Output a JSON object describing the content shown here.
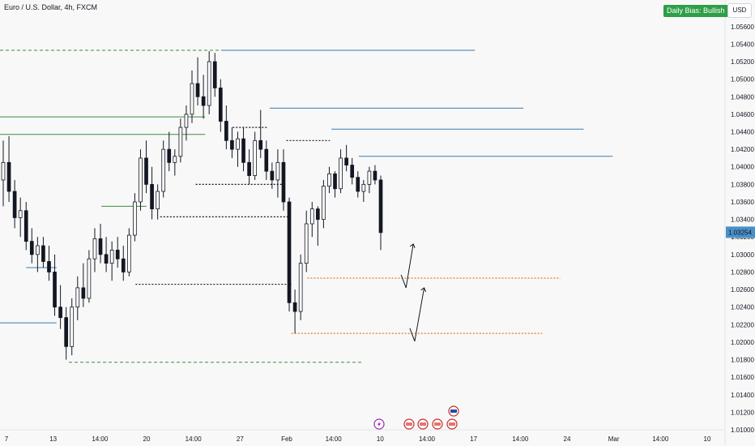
{
  "header": {
    "title": "Euro / U.S. Dollar, 4h, FXCM",
    "bias_badge": "Daily Bias: Bullish",
    "currency": "USD"
  },
  "colors": {
    "background": "#f8f8f8",
    "candle": "#131722",
    "resistance": "#3c78a8",
    "support": "#3a8c3a",
    "liquidity": "#e8782c",
    "structure": "#131722",
    "badge": "#2e9e47",
    "price_tag": "#4a90c8"
  },
  "chart_data": {
    "type": "candlestick",
    "title": "Euro / U.S. Dollar, 4h, FXCM",
    "y_axis": {
      "side": "right",
      "range": [
        1.01,
        1.057
      ],
      "ticks": [
        "1.05600",
        "1.05400",
        "1.05200",
        "1.05000",
        "1.04800",
        "1.04600",
        "1.04400",
        "1.04200",
        "1.04000",
        "1.03800",
        "1.03600",
        "1.03400",
        "1.03200",
        "1.03000",
        "1.02800",
        "1.02600",
        "1.02400",
        "1.02200",
        "1.02000",
        "1.01800",
        "1.01600",
        "1.01400",
        "1.01200",
        "1.01000"
      ]
    },
    "x_axis": {
      "ticks": [
        "7",
        "13",
        "14:00",
        "20",
        "14:00",
        "27",
        "Feb",
        "14:00",
        "10",
        "14:00",
        "17",
        "14:00",
        "24",
        "Mar",
        "14:00",
        "10"
      ]
    },
    "current_price": "1.03254",
    "grid": false,
    "candles": [
      {
        "o": 1.0385,
        "h": 1.043,
        "l": 1.0355,
        "c": 1.0405
      },
      {
        "o": 1.0405,
        "h": 1.0435,
        "l": 1.036,
        "c": 1.0372
      },
      {
        "o": 1.0372,
        "h": 1.0385,
        "l": 1.033,
        "c": 1.0342
      },
      {
        "o": 1.0342,
        "h": 1.0365,
        "l": 1.032,
        "c": 1.035
      },
      {
        "o": 1.035,
        "h": 1.036,
        "l": 1.0305,
        "c": 1.0315
      },
      {
        "o": 1.0315,
        "h": 1.033,
        "l": 1.029,
        "c": 1.03
      },
      {
        "o": 1.03,
        "h": 1.032,
        "l": 1.028,
        "c": 1.031
      },
      {
        "o": 1.031,
        "h": 1.032,
        "l": 1.0285,
        "c": 1.0292
      },
      {
        "o": 1.0292,
        "h": 1.031,
        "l": 1.027,
        "c": 1.028
      },
      {
        "o": 1.028,
        "h": 1.03,
        "l": 1.023,
        "c": 1.024
      },
      {
        "o": 1.024,
        "h": 1.0265,
        "l": 1.0215,
        "c": 1.0228
      },
      {
        "o": 1.0228,
        "h": 1.024,
        "l": 1.018,
        "c": 1.0195
      },
      {
        "o": 1.0195,
        "h": 1.025,
        "l": 1.0185,
        "c": 1.024
      },
      {
        "o": 1.024,
        "h": 1.0275,
        "l": 1.0225,
        "c": 1.0262
      },
      {
        "o": 1.0262,
        "h": 1.029,
        "l": 1.024,
        "c": 1.025
      },
      {
        "o": 1.025,
        "h": 1.0305,
        "l": 1.0245,
        "c": 1.0295
      },
      {
        "o": 1.0295,
        "h": 1.033,
        "l": 1.028,
        "c": 1.0318
      },
      {
        "o": 1.0318,
        "h": 1.0335,
        "l": 1.029,
        "c": 1.03
      },
      {
        "o": 1.03,
        "h": 1.032,
        "l": 1.028,
        "c": 1.029
      },
      {
        "o": 1.029,
        "h": 1.0315,
        "l": 1.027,
        "c": 1.0305
      },
      {
        "o": 1.0305,
        "h": 1.032,
        "l": 1.0285,
        "c": 1.0295
      },
      {
        "o": 1.0295,
        "h": 1.031,
        "l": 1.027,
        "c": 1.028
      },
      {
        "o": 1.028,
        "h": 1.033,
        "l": 1.0275,
        "c": 1.0322
      },
      {
        "o": 1.0322,
        "h": 1.037,
        "l": 1.0315,
        "c": 1.036
      },
      {
        "o": 1.036,
        "h": 1.042,
        "l": 1.035,
        "c": 1.041
      },
      {
        "o": 1.041,
        "h": 1.043,
        "l": 1.037,
        "c": 1.038
      },
      {
        "o": 1.038,
        "h": 1.04,
        "l": 1.034,
        "c": 1.0352
      },
      {
        "o": 1.0352,
        "h": 1.038,
        "l": 1.034,
        "c": 1.0372
      },
      {
        "o": 1.0372,
        "h": 1.043,
        "l": 1.0365,
        "c": 1.042
      },
      {
        "o": 1.042,
        "h": 1.044,
        "l": 1.0395,
        "c": 1.0405
      },
      {
        "o": 1.0405,
        "h": 1.042,
        "l": 1.039,
        "c": 1.0412
      },
      {
        "o": 1.0412,
        "h": 1.0455,
        "l": 1.0405,
        "c": 1.0445
      },
      {
        "o": 1.0445,
        "h": 1.047,
        "l": 1.043,
        "c": 1.046
      },
      {
        "o": 1.046,
        "h": 1.051,
        "l": 1.045,
        "c": 1.0495
      },
      {
        "o": 1.0495,
        "h": 1.0525,
        "l": 1.047,
        "c": 1.048
      },
      {
        "o": 1.048,
        "h": 1.0505,
        "l": 1.0455,
        "c": 1.047
      },
      {
        "o": 1.047,
        "h": 1.0532,
        "l": 1.046,
        "c": 1.052
      },
      {
        "o": 1.052,
        "h": 1.053,
        "l": 1.048,
        "c": 1.049
      },
      {
        "o": 1.049,
        "h": 1.05,
        "l": 1.044,
        "c": 1.0452
      },
      {
        "o": 1.0452,
        "h": 1.047,
        "l": 1.042,
        "c": 1.043
      },
      {
        "o": 1.043,
        "h": 1.0445,
        "l": 1.041,
        "c": 1.042
      },
      {
        "o": 1.042,
        "h": 1.044,
        "l": 1.04,
        "c": 1.0432
      },
      {
        "o": 1.0432,
        "h": 1.0445,
        "l": 1.0395,
        "c": 1.0405
      },
      {
        "o": 1.0405,
        "h": 1.042,
        "l": 1.038,
        "c": 1.039
      },
      {
        "o": 1.039,
        "h": 1.044,
        "l": 1.0385,
        "c": 1.043
      },
      {
        "o": 1.043,
        "h": 1.0465,
        "l": 1.041,
        "c": 1.042
      },
      {
        "o": 1.042,
        "h": 1.043,
        "l": 1.0385,
        "c": 1.0395
      },
      {
        "o": 1.0395,
        "h": 1.0405,
        "l": 1.0375,
        "c": 1.0385
      },
      {
        "o": 1.0385,
        "h": 1.042,
        "l": 1.0365,
        "c": 1.0405
      },
      {
        "o": 1.0405,
        "h": 1.042,
        "l": 1.035,
        "c": 1.036
      },
      {
        "o": 1.036,
        "h": 1.0365,
        "l": 1.0235,
        "c": 1.0245
      },
      {
        "o": 1.0245,
        "h": 1.026,
        "l": 1.021,
        "c": 1.0235
      },
      {
        "o": 1.0235,
        "h": 1.03,
        "l": 1.0225,
        "c": 1.029
      },
      {
        "o": 1.029,
        "h": 1.035,
        "l": 1.028,
        "c": 1.0335
      },
      {
        "o": 1.0335,
        "h": 1.036,
        "l": 1.032,
        "c": 1.0352
      },
      {
        "o": 1.0352,
        "h": 1.0355,
        "l": 1.031,
        "c": 1.034
      },
      {
        "o": 1.034,
        "h": 1.0385,
        "l": 1.033,
        "c": 1.0378
      },
      {
        "o": 1.0378,
        "h": 1.04,
        "l": 1.037,
        "c": 1.0392
      },
      {
        "o": 1.0392,
        "h": 1.0395,
        "l": 1.0365,
        "c": 1.0375
      },
      {
        "o": 1.0375,
        "h": 1.042,
        "l": 1.037,
        "c": 1.041
      },
      {
        "o": 1.041,
        "h": 1.0425,
        "l": 1.0395,
        "c": 1.0402
      },
      {
        "o": 1.0402,
        "h": 1.041,
        "l": 1.038,
        "c": 1.0388
      },
      {
        "o": 1.0388,
        "h": 1.0395,
        "l": 1.0365,
        "c": 1.0372
      },
      {
        "o": 1.0372,
        "h": 1.0385,
        "l": 1.036,
        "c": 1.038
      },
      {
        "o": 1.038,
        "h": 1.04,
        "l": 1.037,
        "c": 1.0395
      },
      {
        "o": 1.0395,
        "h": 1.0402,
        "l": 1.038,
        "c": 1.0385
      },
      {
        "o": 1.0385,
        "h": 1.039,
        "l": 1.0305,
        "c": 1.0325
      }
    ],
    "levels": [
      {
        "kind": "resistance",
        "price": 1.0533,
        "from": 0,
        "to": 0.655,
        "style": "dashed-green-left"
      },
      {
        "kind": "resistance",
        "price": 1.0533,
        "from": 0.306,
        "to": 0.655,
        "style": "solid"
      },
      {
        "kind": "resistance",
        "price": 1.0467,
        "from": 0.372,
        "to": 0.722,
        "style": "solid"
      },
      {
        "kind": "resistance",
        "price": 1.0443,
        "from": 0.457,
        "to": 0.805,
        "style": "solid"
      },
      {
        "kind": "resistance",
        "price": 1.0412,
        "from": 0.495,
        "to": 0.845,
        "style": "solid"
      },
      {
        "kind": "resistance",
        "price": 1.0285,
        "from": 0.036,
        "to": 0.078,
        "style": "solid"
      },
      {
        "kind": "resistance",
        "price": 1.0222,
        "from": 0,
        "to": 0.078,
        "style": "solid"
      },
      {
        "kind": "support",
        "price": 1.0457,
        "from": 0,
        "to": 0.283,
        "style": "solid"
      },
      {
        "kind": "support",
        "price": 1.0437,
        "from": 0,
        "to": 0.283,
        "style": "solid"
      },
      {
        "kind": "support",
        "price": 1.0355,
        "from": 0.14,
        "to": 0.202,
        "style": "solid"
      },
      {
        "kind": "liquidity",
        "price": 1.0273,
        "from": 0.424,
        "to": 0.773,
        "style": "dotted"
      },
      {
        "kind": "liquidity",
        "price": 1.021,
        "from": 0.402,
        "to": 0.748,
        "style": "dotted"
      },
      {
        "kind": "structure",
        "price": 1.0266,
        "from": 0.187,
        "to": 0.402,
        "style": "dotted"
      },
      {
        "kind": "structure",
        "price": 1.0343,
        "from": 0.221,
        "to": 0.398,
        "style": "dotted"
      },
      {
        "kind": "structure",
        "price": 1.0445,
        "from": 0.321,
        "to": 0.37,
        "style": "dotted"
      },
      {
        "kind": "structure",
        "price": 1.038,
        "from": 0.27,
        "to": 0.39,
        "style": "dotted"
      },
      {
        "kind": "structure",
        "price": 1.043,
        "from": 0.395,
        "to": 0.455,
        "style": "dotted"
      },
      {
        "kind": "low-marker",
        "price": 1.0177,
        "from": 0.095,
        "to": 0.5,
        "style": "dashed-green"
      }
    ],
    "projections": [
      {
        "points": [
          [
            0.56,
            1.0262
          ],
          [
            0.57,
            1.0312
          ]
        ]
      },
      {
        "points": [
          [
            0.572,
            1.0201
          ],
          [
            0.585,
            1.0262
          ]
        ]
      }
    ],
    "event_markers": [
      "lightning",
      "us-flag",
      "us-flag",
      "us-flag",
      "us-flag",
      "us-flag-highlight"
    ]
  }
}
